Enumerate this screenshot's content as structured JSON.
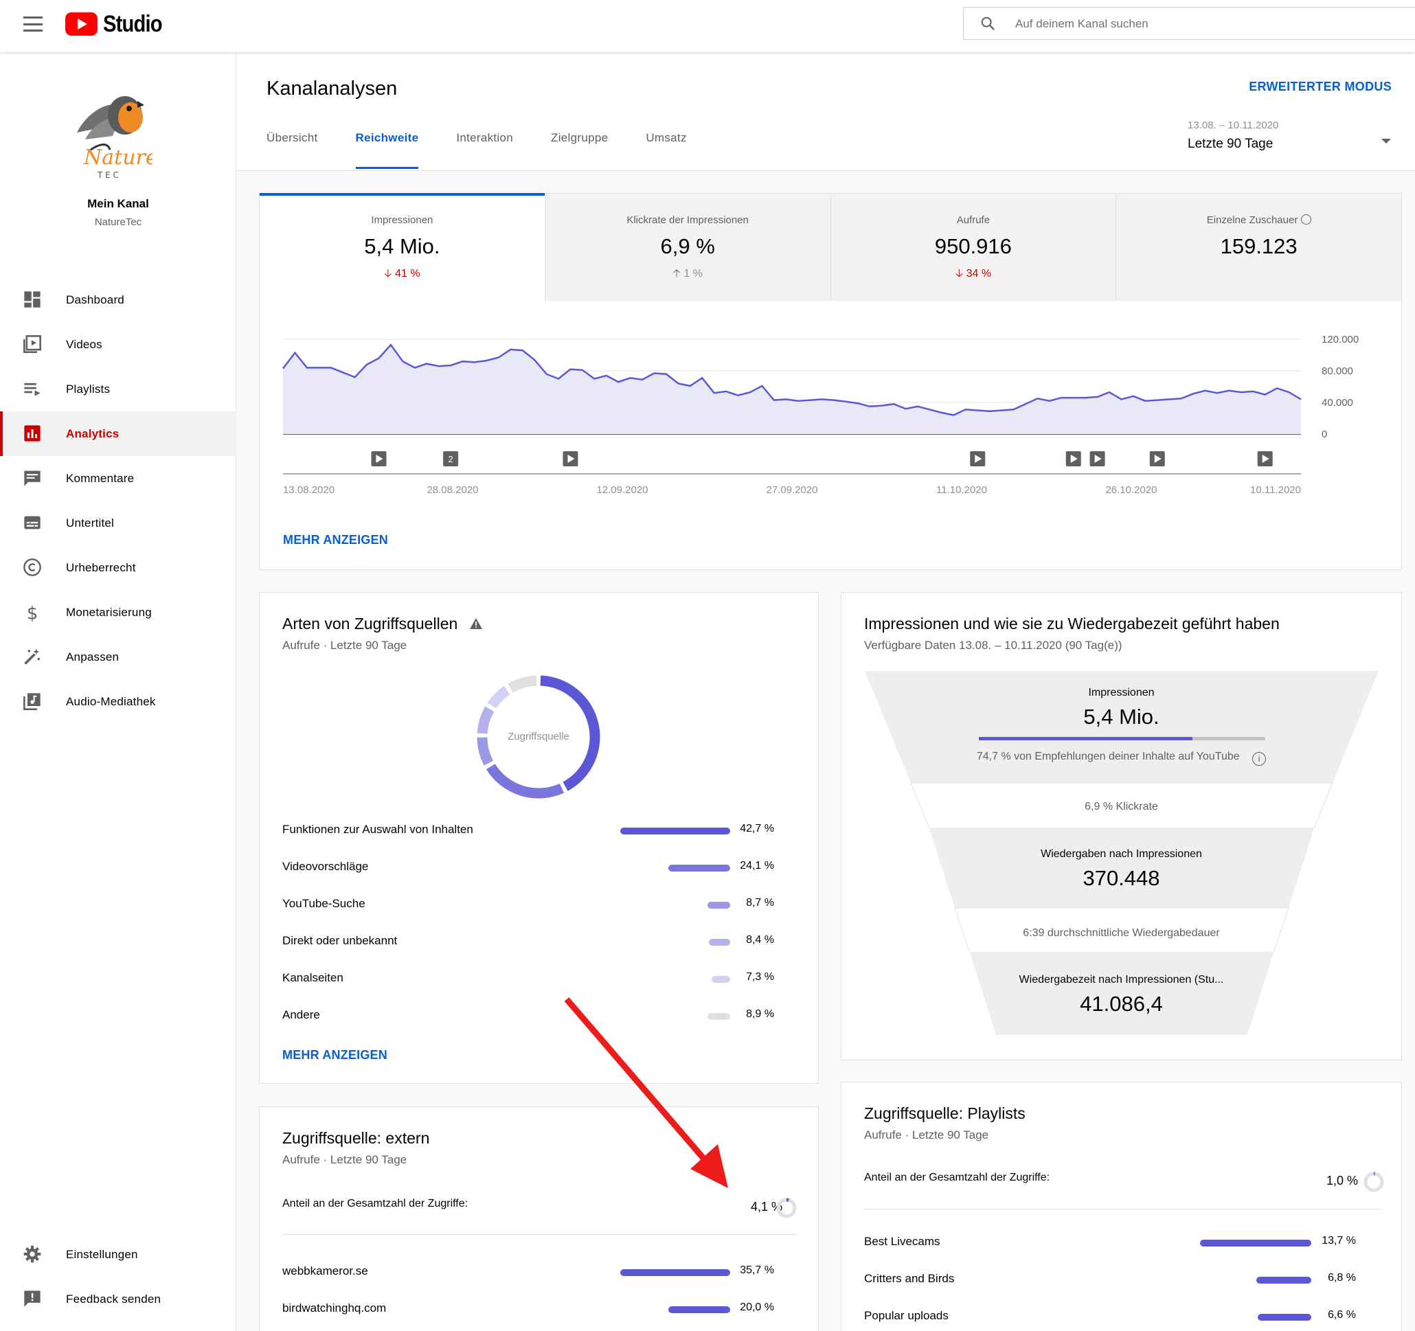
{
  "app": {
    "title": "Studio"
  },
  "search": {
    "placeholder": "Auf deinem Kanal suchen"
  },
  "channel": {
    "name": "Mein Kanal",
    "handle": "NatureTec",
    "logo_text": "Nature",
    "logo_sub": "T E C"
  },
  "nav": {
    "items": [
      {
        "label": "Dashboard",
        "icon": "dashboard-icon"
      },
      {
        "label": "Videos",
        "icon": "videos-icon"
      },
      {
        "label": "Playlists",
        "icon": "playlists-icon"
      },
      {
        "label": "Analytics",
        "icon": "analytics-icon",
        "active": true
      },
      {
        "label": "Kommentare",
        "icon": "comments-icon"
      },
      {
        "label": "Untertitel",
        "icon": "subtitles-icon"
      },
      {
        "label": "Urheberrecht",
        "icon": "copyright-icon"
      },
      {
        "label": "Monetarisierung",
        "icon": "dollar-icon"
      },
      {
        "label": "Anpassen",
        "icon": "magic-wand-icon"
      },
      {
        "label": "Audio-Mediathek",
        "icon": "audio-library-icon"
      }
    ],
    "bottom": [
      {
        "label": "Einstellungen",
        "icon": "gear-icon"
      },
      {
        "label": "Feedback senden",
        "icon": "feedback-icon"
      }
    ]
  },
  "header": {
    "title": "Kanalanalysen",
    "advanced_mode": "ERWEITERTER MODUS",
    "tabs": [
      "Übersicht",
      "Reichweite",
      "Interaktion",
      "Zielgruppe",
      "Umsatz"
    ],
    "active_tab": "Reichweite",
    "date_range": "13.08. – 10.11.2020",
    "date_label": "Letzte 90 Tage"
  },
  "metrics": [
    {
      "label": "Impressionen",
      "value": "5,4 Mio.",
      "delta": "41 %",
      "direction": "down"
    },
    {
      "label": "Klickrate der Impressionen",
      "value": "6,9 %",
      "delta": "1 %",
      "direction": "up"
    },
    {
      "label": "Aufrufe",
      "value": "950.916",
      "delta": "34 %",
      "direction": "down"
    },
    {
      "label": "Einzelne Zuschauer",
      "value": "159.123",
      "delta": "",
      "direction": "none"
    }
  ],
  "chart_data": {
    "type": "area",
    "x_ticks": [
      "13.08.2020",
      "28.08.2020",
      "12.09.2020",
      "27.09.2020",
      "11.10.2020",
      "26.10.2020",
      "10.11.2020"
    ],
    "y_ticks": [
      "120.000",
      "80.000",
      "40.000",
      "0"
    ],
    "ylim": [
      0,
      120000
    ],
    "values": [
      83000,
      103000,
      84000,
      84000,
      84000,
      78000,
      72000,
      88000,
      96000,
      113000,
      92000,
      84000,
      89000,
      86000,
      87000,
      92000,
      91000,
      93000,
      97000,
      107000,
      106000,
      94000,
      76000,
      70000,
      82000,
      81000,
      70000,
      74000,
      66000,
      71000,
      69000,
      77000,
      76000,
      64000,
      61000,
      71000,
      52000,
      54000,
      49000,
      53000,
      61000,
      43000,
      44000,
      42000,
      43000,
      44000,
      43000,
      41000,
      39000,
      35000,
      36000,
      38000,
      32000,
      35000,
      31000,
      27000,
      24000,
      31000,
      30000,
      29000,
      30000,
      31000,
      38000,
      45000,
      42000,
      46000,
      46000,
      46000,
      47000,
      53000,
      44000,
      48000,
      42000,
      43000,
      44000,
      45000,
      51000,
      55000,
      52000,
      55000,
      53000,
      54000,
      50000,
      58000,
      53000,
      44000
    ],
    "markers": [
      {
        "label": "",
        "date_index": 8
      },
      {
        "label": "2",
        "date_index": 14
      },
      {
        "label": "",
        "date_index": 24
      },
      {
        "label": "",
        "date_index": 58
      },
      {
        "label": "",
        "date_index": 66
      },
      {
        "label": "",
        "date_index": 68
      },
      {
        "label": "",
        "date_index": 73
      },
      {
        "label": "",
        "date_index": 82
      }
    ],
    "more": "MEHR ANZEIGEN"
  },
  "traffic": {
    "title": "Arten von Zugriffsquellen",
    "subtitle": "Aufrufe · Letzte 90 Tage",
    "donut_label": "Zugriffsquelle",
    "more": "MEHR ANZEIGEN",
    "rows": [
      {
        "label": "Funktionen zur Auswahl von Inhalten",
        "value": "42,7 %",
        "pct": 42.7,
        "color": "#5c57d6"
      },
      {
        "label": "Videovorschläge",
        "value": "24,1 %",
        "pct": 24.1,
        "color": "#7b76de"
      },
      {
        "label": "YouTube-Suche",
        "value": "8,7 %",
        "pct": 8.7,
        "color": "#9c98e6"
      },
      {
        "label": "Direkt oder unbekannt",
        "value": "8,4 %",
        "pct": 8.4,
        "color": "#b4b1ee"
      },
      {
        "label": "Kanalseiten",
        "value": "7,3 %",
        "pct": 7.3,
        "color": "#d3d1f5"
      },
      {
        "label": "Andere",
        "value": "8,9 %",
        "pct": 8.9,
        "color": "#e0e0e0"
      }
    ]
  },
  "funnel": {
    "title": "Impressionen und wie sie zu Wiedergabezeit geführt haben",
    "subtitle": "Verfügbare Daten 13.08. – 10.11.2020 (90 Tag(e))",
    "impressions_label": "Impressionen",
    "impressions_value": "5,4 Mio.",
    "recommendation_share": 0.747,
    "recommendation_note": "74,7 % von Empfehlungen deiner Inhalte auf YouTube",
    "ctr": "6,9 % Klickrate",
    "views_label": "Wiedergaben nach Impressionen",
    "views_value": "370.448",
    "avg_duration": "6:39 durchschnittliche Wiedergabedauer",
    "watchtime_label": "Wiedergabezeit nach Impressionen (Stu...",
    "watchtime_value": "41.086,4"
  },
  "external": {
    "title": "Zugriffsquelle: extern",
    "subtitle": "Aufrufe · Letzte 90 Tage",
    "share_label": "Anteil an der Gesamtzahl der Zugriffe:",
    "share_value": "4,1 %",
    "share_pct": 4.1,
    "rows": [
      {
        "label": "webbkameror.se",
        "value": "35,7 %",
        "pct": 35.7
      },
      {
        "label": "birdwatchinghq.com",
        "value": "20,0 %",
        "pct": 20.0
      }
    ]
  },
  "playlists": {
    "title": "Zugriffsquelle: Playlists",
    "subtitle": "Aufrufe · Letzte 90 Tage",
    "share_label": "Anteil an der Gesamtzahl der Zugriffe:",
    "share_value": "1,0 %",
    "share_pct": 1.0,
    "rows": [
      {
        "label": "Best Livecams",
        "value": "13,7 %",
        "pct": 13.7
      },
      {
        "label": "Critters and Birds",
        "value": "6,8 %",
        "pct": 6.8
      },
      {
        "label": "Popular uploads",
        "value": "6,6 %",
        "pct": 6.6
      }
    ]
  },
  "colors": {
    "accent": "#065fd4",
    "brand": "#ff0000",
    "series": "#5c57d6",
    "down": "#cc0000",
    "arrow": "#ee1b1b"
  }
}
